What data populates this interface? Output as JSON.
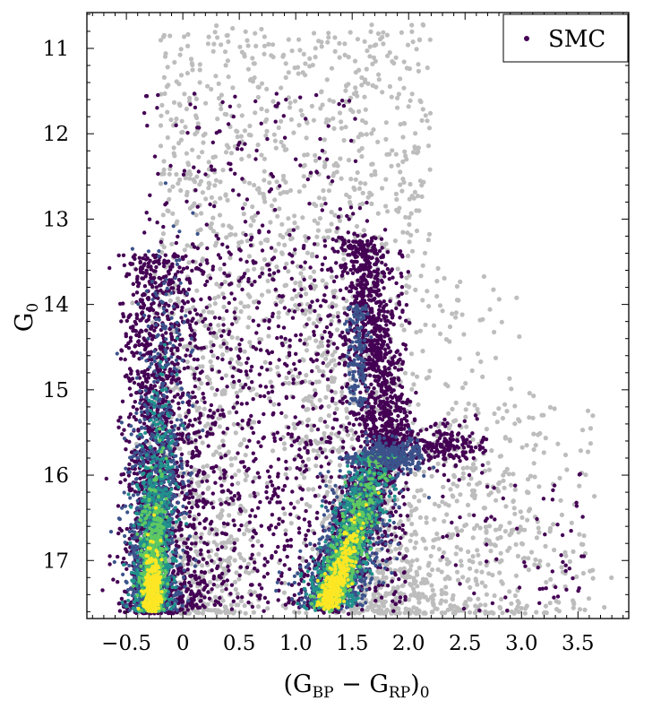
{
  "chart_data": {
    "type": "scatter",
    "title": "",
    "xlabel": "(G_BP − G_RP)_0",
    "xlabel_parts": {
      "open": "(G",
      "sub1": "BP",
      "minus": " − G",
      "sub2": "RP",
      "close": ")",
      "sub3": "0"
    },
    "ylabel": "G_0",
    "ylabel_parts": {
      "base": "G",
      "sub": "0"
    },
    "xlim": [
      -0.85,
      3.95
    ],
    "ylim": [
      17.68,
      10.58
    ],
    "y_inverted": true,
    "grid": false,
    "xticks": [
      -0.5,
      0,
      0.5,
      1.0,
      1.5,
      2.0,
      2.5,
      3.0,
      3.5
    ],
    "xtick_labels": [
      "−0.5",
      "0",
      "0.5",
      "1.0",
      "1.5",
      "2.0",
      "2.5",
      "3.0",
      "3.5"
    ],
    "yticks": [
      11,
      12,
      13,
      14,
      15,
      16,
      17
    ],
    "ytick_labels": [
      "11",
      "12",
      "13",
      "14",
      "15",
      "16",
      "17"
    ],
    "legend": {
      "position": "top-right",
      "label": "SMC"
    },
    "colors": {
      "background_stars": "#bdbdbd",
      "smc_points": "#440154",
      "density_low": "#3b528b",
      "density_mid": "#21918c",
      "density_high": "#5ec962",
      "density_peak": "#fde725"
    },
    "series": [
      {
        "name": "SMC",
        "kind": "density-colored scatter",
        "features": [
          {
            "feature": "blue main sequence",
            "x_range": [
              -0.4,
              -0.05
            ],
            "y_range": [
              15.0,
              17.6
            ],
            "peak_x": -0.28,
            "peak_y": 17.3
          },
          {
            "feature": "red giant branch / red clump ridge",
            "x_start": 1.2,
            "y_start": 17.55,
            "x_end": 1.75,
            "y_end": 15.9,
            "peak_x": 1.3,
            "peak_y": 17.45
          },
          {
            "feature": "upper giant branch",
            "x_start": 1.6,
            "y_start": 15.6,
            "x_end": 1.5,
            "y_end": 13.0
          },
          {
            "feature": "red clump plume",
            "x_range": [
              1.7,
              2.4
            ],
            "y_range": [
              15.4,
              15.9
            ]
          }
        ]
      },
      {
        "name": "",
        "kind": "field stars (grey)",
        "features": [
          {
            "feature": "broad foreground distribution",
            "x_range": [
              -0.3,
              3.6
            ],
            "y_range": [
              10.7,
              17.6
            ]
          }
        ]
      }
    ]
  }
}
